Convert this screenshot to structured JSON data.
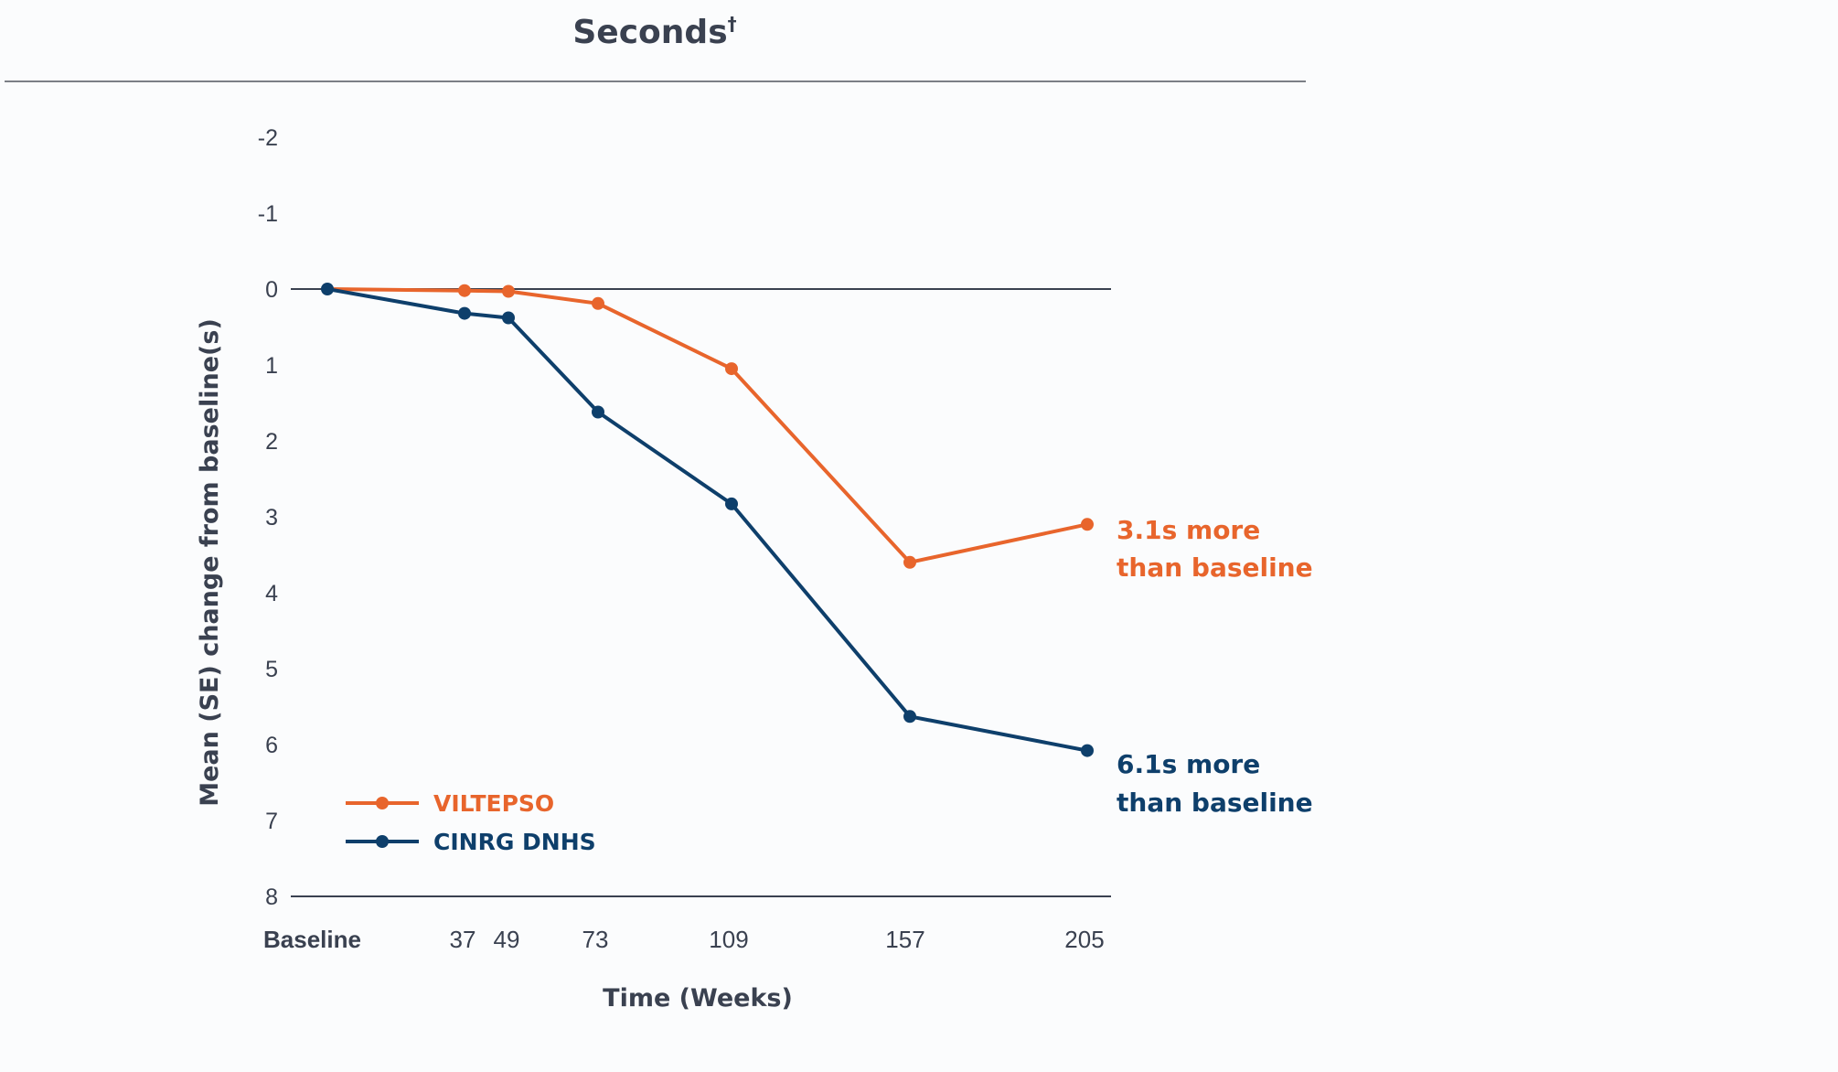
{
  "chart_data": {
    "type": "line",
    "title": "Seconds",
    "title_superscript": "†",
    "xlabel": "Time (Weeks)",
    "ylabel": "Mean (SE) change from baseline(s)",
    "x_tick_labels": [
      "Baseline",
      "37",
      "49",
      "73",
      "109",
      "157",
      "205"
    ],
    "x_values": [
      0,
      37,
      49,
      73,
      109,
      157,
      205
    ],
    "y_ticks": [
      -2,
      -1,
      0,
      1,
      2,
      3,
      4,
      5,
      6,
      7,
      8
    ],
    "ylim": [
      -2,
      8
    ],
    "y_inverted": true,
    "grid": false,
    "legend_position": "bottom-left",
    "series": [
      {
        "name": "VILTEPSO",
        "color": "#e8652c",
        "values": [
          0,
          0.02,
          0.03,
          0.19,
          1.05,
          3.6,
          3.1
        ],
        "end_label": [
          "3.1s more",
          "than baseline"
        ]
      },
      {
        "name": "CINRG DNHS",
        "color": "#0e3f6b",
        "values": [
          0,
          0.32,
          0.38,
          1.62,
          2.83,
          5.63,
          6.08
        ],
        "end_label": [
          "6.1s more",
          "than baseline"
        ]
      }
    ]
  }
}
